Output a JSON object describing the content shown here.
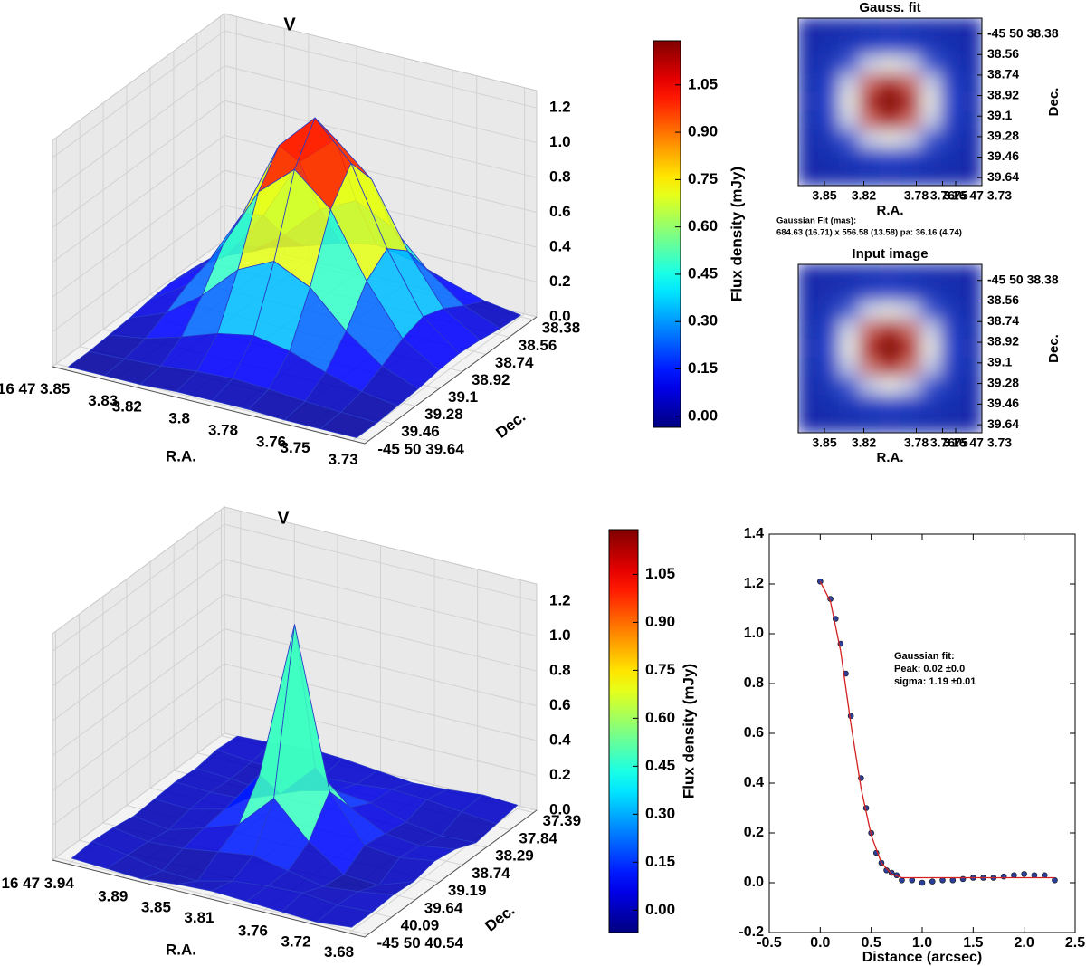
{
  "chart_data": [
    {
      "type": "surface",
      "title": "V",
      "xlabel": "R.A.",
      "ylabel": "Dec.",
      "colormap": "jet",
      "x": [
        3.85,
        3.835,
        3.82,
        3.805,
        3.79,
        3.775,
        3.76,
        3.745,
        3.73
      ],
      "y": [
        38.38,
        38.538,
        38.695,
        38.853,
        39.01,
        39.168,
        39.325,
        39.483,
        39.64
      ],
      "z": [
        [
          0.01,
          0.04,
          0.1,
          0.17,
          0.21,
          0.17,
          0.1,
          0.04,
          0.01
        ],
        [
          0.02,
          0.1,
          0.25,
          0.45,
          0.55,
          0.45,
          0.25,
          0.1,
          0.02
        ],
        [
          0.04,
          0.17,
          0.45,
          0.81,
          0.99,
          0.81,
          0.45,
          0.17,
          0.04
        ],
        [
          0.05,
          0.21,
          0.55,
          0.99,
          1.2,
          0.99,
          0.55,
          0.21,
          0.05
        ],
        [
          0.04,
          0.17,
          0.45,
          0.81,
          0.99,
          0.81,
          0.45,
          0.17,
          0.04
        ],
        [
          0.02,
          0.1,
          0.25,
          0.45,
          0.55,
          0.45,
          0.25,
          0.1,
          0.02
        ],
        [
          0.01,
          0.04,
          0.1,
          0.17,
          0.21,
          0.17,
          0.1,
          0.04,
          0.01
        ],
        [
          0,
          0.01,
          0.02,
          0.04,
          0.05,
          0.04,
          0.02,
          0.01,
          0
        ],
        [
          0,
          0,
          0,
          0.01,
          0.01,
          0.01,
          0,
          0,
          0
        ]
      ],
      "xlim": [
        3.855,
        3.725
      ],
      "ylim": [
        39.67,
        38.35
      ],
      "zlim": [
        0,
        1.3
      ],
      "xticks": [
        {
          "value": 3.85,
          "label": "16 47 3.85"
        },
        3.83,
        3.82,
        3.8,
        3.78,
        3.76,
        3.75,
        3.73
      ],
      "yticks": [
        38.38,
        38.56,
        38.74,
        38.92,
        39.1,
        39.28,
        39.46,
        {
          "value": 39.64,
          "label": "-45 50 39.64"
        }
      ],
      "zticks": [
        {
          "value": 0,
          "label": "0.0"
        },
        0.2,
        0.4,
        0.6,
        0.8,
        {
          "value": 1,
          "label": "1.0"
        },
        1.2
      ],
      "colorbar": {
        "label": "Flux density (mJy)",
        "clim": [
          -0.035,
          1.19
        ],
        "ticks": [
          {
            "value": 0,
            "label": "0.00"
          },
          0.15,
          {
            "value": 0.3,
            "label": "0.30"
          },
          0.45,
          {
            "value": 0.6,
            "label": "0.60"
          },
          0.75,
          {
            "value": 0.9,
            "label": "0.90"
          },
          1.05
        ]
      }
    },
    {
      "type": "heatmap",
      "title": "Gauss. fit",
      "xlabel": "R.A.",
      "ylabel": "Dec.",
      "colormap": "bwr",
      "z": [
        [
          0,
          0.01,
          0.02,
          0.04,
          0.05,
          0.04,
          0.02,
          0.01,
          0
        ],
        [
          0.01,
          0.04,
          0.1,
          0.17,
          0.21,
          0.17,
          0.1,
          0.04,
          0.01
        ],
        [
          0.02,
          0.1,
          0.25,
          0.45,
          0.55,
          0.45,
          0.25,
          0.1,
          0.02
        ],
        [
          0.04,
          0.17,
          0.45,
          0.81,
          0.99,
          0.81,
          0.45,
          0.17,
          0.04
        ],
        [
          0.05,
          0.21,
          0.55,
          0.99,
          1.2,
          0.99,
          0.55,
          0.21,
          0.05
        ],
        [
          0.04,
          0.17,
          0.45,
          0.81,
          0.99,
          0.81,
          0.45,
          0.17,
          0.04
        ],
        [
          0.02,
          0.1,
          0.25,
          0.45,
          0.55,
          0.45,
          0.25,
          0.1,
          0.02
        ],
        [
          0.01,
          0.04,
          0.1,
          0.17,
          0.21,
          0.17,
          0.1,
          0.04,
          0.01
        ],
        [
          0,
          0.01,
          0.02,
          0.04,
          0.05,
          0.04,
          0.02,
          0.01,
          0
        ]
      ],
      "xlim": [
        3.87,
        3.73
      ],
      "ylim": [
        38.24,
        39.71
      ],
      "xticks": [
        3.85,
        3.82,
        3.78,
        3.76,
        3.75,
        {
          "value": 3.73,
          "label": "16 47 3.73"
        }
      ],
      "yticks": [
        {
          "value": 38.38,
          "label": "-45 50 38.38"
        },
        38.56,
        38.74,
        38.92,
        39.1,
        39.28,
        39.46,
        39.64
      ],
      "annotation": [
        "Gaussian Fit (mas):",
        "684.63 (16.71) x 556.58 (13.58) pa: 36.16 (4.74)"
      ]
    },
    {
      "type": "heatmap",
      "title": "Input image",
      "xlabel": "R.A.",
      "ylabel": "Dec.",
      "colormap": "bwr",
      "z": [
        [
          0,
          0.01,
          0.02,
          0.04,
          0.05,
          0.04,
          0.02,
          0.01,
          0
        ],
        [
          0.01,
          0.05,
          0.1,
          0.18,
          0.22,
          0.17,
          0.1,
          0.04,
          0.01
        ],
        [
          0.02,
          0.1,
          0.26,
          0.46,
          0.56,
          0.45,
          0.25,
          0.1,
          0.02
        ],
        [
          0.04,
          0.17,
          0.46,
          0.82,
          1.0,
          0.81,
          0.45,
          0.17,
          0.04
        ],
        [
          0.05,
          0.21,
          0.55,
          0.99,
          1.21,
          0.98,
          0.55,
          0.21,
          0.05
        ],
        [
          0.04,
          0.17,
          0.44,
          0.8,
          0.98,
          0.8,
          0.44,
          0.16,
          0.04
        ],
        [
          0.02,
          0.1,
          0.25,
          0.44,
          0.54,
          0.44,
          0.24,
          0.1,
          0.02
        ],
        [
          0.01,
          0.04,
          0.1,
          0.16,
          0.2,
          0.16,
          0.1,
          0.04,
          0.01
        ],
        [
          0,
          0.01,
          0.02,
          0.04,
          0.05,
          0.04,
          0.02,
          0.01,
          0
        ]
      ],
      "xlim": [
        3.87,
        3.73
      ],
      "ylim": [
        38.24,
        39.71
      ],
      "xticks": [
        3.85,
        3.82,
        3.78,
        3.76,
        3.75,
        {
          "value": 3.73,
          "label": "16 47 3.73"
        }
      ],
      "yticks": [
        {
          "value": 38.38,
          "label": "-45 50 38.38"
        },
        38.56,
        38.74,
        38.92,
        39.1,
        39.28,
        39.46,
        39.64
      ]
    },
    {
      "type": "surface",
      "title": "V",
      "xlabel": "R.A.",
      "ylabel": "Dec.",
      "colormap": "jet",
      "x": [
        3.94,
        3.9075,
        3.875,
        3.8425,
        3.81,
        3.7775,
        3.745,
        3.7125,
        3.68
      ],
      "y": [
        37.39,
        37.784,
        38.178,
        38.571,
        38.965,
        39.359,
        39.753,
        40.146,
        40.54
      ],
      "z": [
        [
          0.02,
          0.03,
          0.05,
          0.04,
          0.02,
          0.0,
          0.01,
          0.03,
          0.02
        ],
        [
          0.03,
          0.01,
          0.0,
          0.02,
          0.03,
          0.05,
          0.04,
          0.02,
          0.0
        ],
        [
          0.01,
          0.0,
          -0.02,
          0.03,
          0.08,
          0.06,
          0.0,
          -0.03,
          -0.02
        ],
        [
          0.02,
          0.01,
          0.02,
          0.1,
          0.3,
          0.12,
          0.02,
          0.0,
          0.03
        ],
        [
          0.01,
          0.0,
          0.05,
          0.3,
          1.21,
          0.3,
          0.04,
          0.02,
          0.05
        ],
        [
          0.0,
          -0.03,
          0.03,
          0.1,
          0.3,
          0.1,
          -0.04,
          -0.05,
          0.02
        ],
        [
          0.02,
          -0.01,
          0.0,
          0.03,
          0.06,
          0.02,
          -0.02,
          0.0,
          0.03
        ],
        [
          0.03,
          0.0,
          -0.04,
          -0.05,
          0.0,
          0.02,
          0.03,
          0.01,
          0.02
        ],
        [
          0.02,
          0.01,
          0.0,
          0.02,
          0.03,
          0.02,
          0.01,
          0.0,
          0.02
        ]
      ],
      "xlim": [
        3.955,
        3.665
      ],
      "ylim": [
        40.6,
        37.33
      ],
      "zlim": [
        0,
        1.3
      ],
      "xticks": [
        {
          "value": 3.94,
          "label": "16 47 3.94"
        },
        3.89,
        3.85,
        3.81,
        3.76,
        3.72,
        3.68
      ],
      "yticks": [
        37.39,
        37.84,
        38.29,
        38.74,
        39.19,
        39.64,
        40.09,
        {
          "value": 40.54,
          "label": "-45 50 40.54"
        }
      ],
      "zticks": [
        {
          "value": 0,
          "label": "0.0"
        },
        0.2,
        0.4,
        0.6,
        0.8,
        {
          "value": 1,
          "label": "1.0"
        },
        1.2
      ],
      "colorbar": {
        "label": "Flux density (mJy)",
        "clim": [
          -0.07,
          1.19
        ],
        "ticks": [
          {
            "value": 0,
            "label": "0.00"
          },
          0.15,
          {
            "value": 0.3,
            "label": "0.30"
          },
          0.45,
          {
            "value": 0.6,
            "label": "0.60"
          },
          0.75,
          {
            "value": 0.9,
            "label": "0.90"
          },
          1.05
        ]
      }
    },
    {
      "type": "scatter",
      "xlabel": "Distance (arcsec)",
      "xlim": [
        -0.5,
        2.5
      ],
      "ylim": [
        -0.2,
        1.4
      ],
      "xticks": [
        -0.5,
        {
          "value": 0,
          "label": "0.0"
        },
        0.5,
        {
          "value": 1,
          "label": "1.0"
        },
        1.5,
        {
          "value": 2,
          "label": "2.0"
        },
        2.5
      ],
      "yticks": [
        -0.2,
        {
          "value": 0,
          "label": "0.0"
        },
        0.2,
        0.4,
        0.6,
        0.8,
        {
          "value": 1,
          "label": "1.0"
        },
        1.2,
        1.4
      ],
      "series": [
        {
          "type": "points",
          "color": "#2b3f9a",
          "x": [
            0,
            0.1,
            0.15,
            0.2,
            0.25,
            0.3,
            0.4,
            0.45,
            0.5,
            0.55,
            0.6,
            0.65,
            0.7,
            0.75,
            0.8,
            0.9,
            1.0,
            1.1,
            1.2,
            1.3,
            1.4,
            1.5,
            1.6,
            1.7,
            1.8,
            1.9,
            2.0,
            2.1,
            2.2,
            2.3
          ],
          "y": [
            1.21,
            1.14,
            1.06,
            0.96,
            0.84,
            0.67,
            0.42,
            0.3,
            0.2,
            0.12,
            0.08,
            0.05,
            0.04,
            0.03,
            0.01,
            0.01,
            0.0,
            0.005,
            0.01,
            0.01,
            0.015,
            0.02,
            0.02,
            0.02,
            0.025,
            0.03,
            0.035,
            0.03,
            0.03,
            0.01
          ]
        },
        {
          "type": "line",
          "color": "#d42020",
          "x": [
            0,
            0.1,
            0.2,
            0.3,
            0.4,
            0.5,
            0.6,
            0.7,
            0.8,
            1.0,
            1.5,
            2.0,
            2.3
          ],
          "y": [
            1.21,
            1.13,
            0.93,
            0.64,
            0.38,
            0.19,
            0.08,
            0.035,
            0.02,
            0.02,
            0.02,
            0.02,
            0.02
          ]
        }
      ],
      "annotation": [
        "Gaussian fit:",
        "Peak: 0.02 ±0.0",
        "sigma: 1.19 ±0.01"
      ]
    }
  ]
}
